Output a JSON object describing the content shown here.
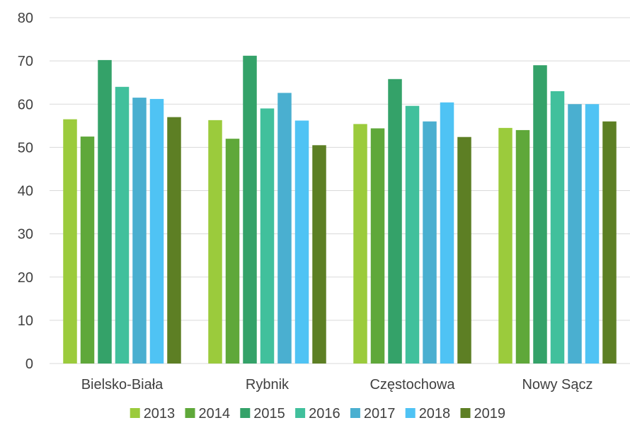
{
  "chart_data": {
    "type": "bar",
    "title": "",
    "xlabel": "",
    "ylabel": "",
    "ylim": [
      0,
      80
    ],
    "yticks": [
      "0",
      "10",
      "20",
      "30",
      "40",
      "50",
      "60",
      "70",
      "80"
    ],
    "grid": true,
    "legend_position": "bottom",
    "categories": [
      "Bielsko-Biała",
      "Rybnik",
      "Częstochowa",
      "Nowy Sącz"
    ],
    "series": [
      {
        "name": "2013",
        "color": "#9BCB3C",
        "values": [
          56.5,
          56.3,
          55.4,
          54.5
        ]
      },
      {
        "name": "2014",
        "color": "#5FA83A",
        "values": [
          52.5,
          52.0,
          54.4,
          54.0
        ]
      },
      {
        "name": "2015",
        "color": "#34A269",
        "values": [
          70.2,
          71.2,
          65.8,
          69.0
        ]
      },
      {
        "name": "2016",
        "color": "#41C09C",
        "values": [
          64.0,
          59.0,
          59.6,
          63.0
        ]
      },
      {
        "name": "2017",
        "color": "#4AAFD0",
        "values": [
          61.5,
          62.6,
          56.0,
          60.0
        ]
      },
      {
        "name": "2018",
        "color": "#4FC3F4",
        "values": [
          61.2,
          56.2,
          60.4,
          60.0
        ]
      },
      {
        "name": "2019",
        "color": "#5D7F24",
        "values": [
          57.0,
          50.5,
          52.4,
          56.0
        ]
      }
    ]
  }
}
